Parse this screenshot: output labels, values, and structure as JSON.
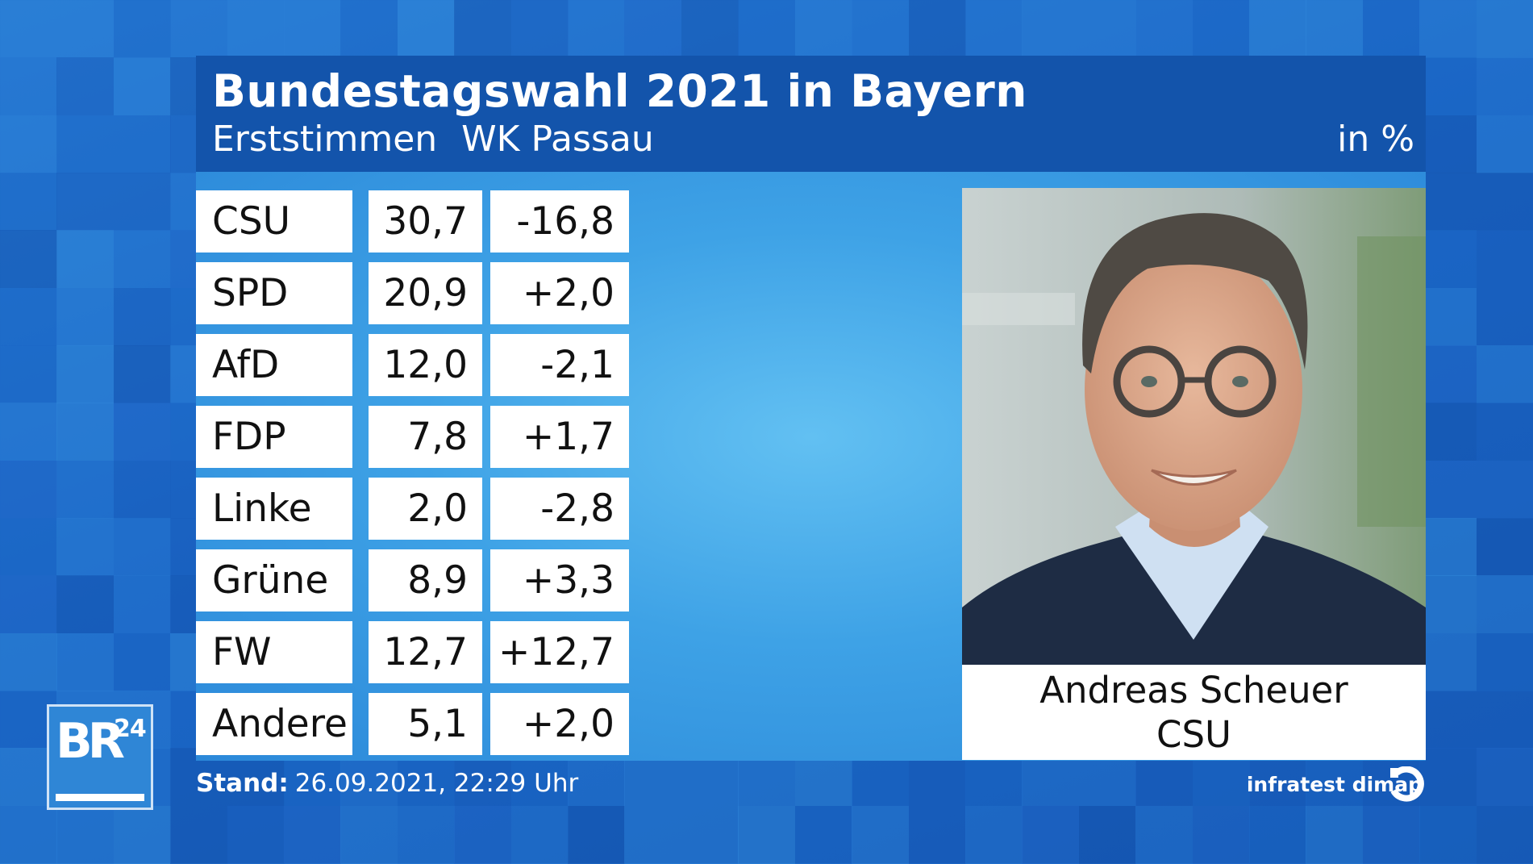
{
  "header": {
    "title": "Bundestagswahl 2021 in Bayern",
    "subtitle_vote": "Erststimmen",
    "subtitle_district": "WK Passau",
    "unit": "in %"
  },
  "chart_data": {
    "type": "table",
    "title": "Bundestagswahl 2021 in Bayern",
    "subtitle": "Erststimmen WK Passau",
    "unit": "in %",
    "rows": [
      {
        "party": "CSU",
        "value": "30,7",
        "diff": "-16,8"
      },
      {
        "party": "SPD",
        "value": "20,9",
        "diff": "+2,0"
      },
      {
        "party": "AfD",
        "value": "12,0",
        "diff": "-2,1"
      },
      {
        "party": "FDP",
        "value": "7,8",
        "diff": "+1,7"
      },
      {
        "party": "Linke",
        "value": "2,0",
        "diff": "-2,8"
      },
      {
        "party": "Grüne",
        "value": "8,9",
        "diff": "+3,3"
      },
      {
        "party": "FW",
        "value": "12,7",
        "diff": "+12,7"
      },
      {
        "party": "Andere",
        "value": "5,1",
        "diff": "+2,0"
      }
    ]
  },
  "candidate": {
    "name": "Andreas Scheuer",
    "party": "CSU"
  },
  "footer": {
    "stand_label": "Stand:",
    "stand_value": "26.09.2021, 22:29 Uhr",
    "source": "infratest dimap"
  },
  "logo": {
    "letters": "BR",
    "number": "24"
  },
  "colors": {
    "header_bg": "#1354ab",
    "background": "#1a64c4",
    "table_cell": "#ffffff"
  }
}
